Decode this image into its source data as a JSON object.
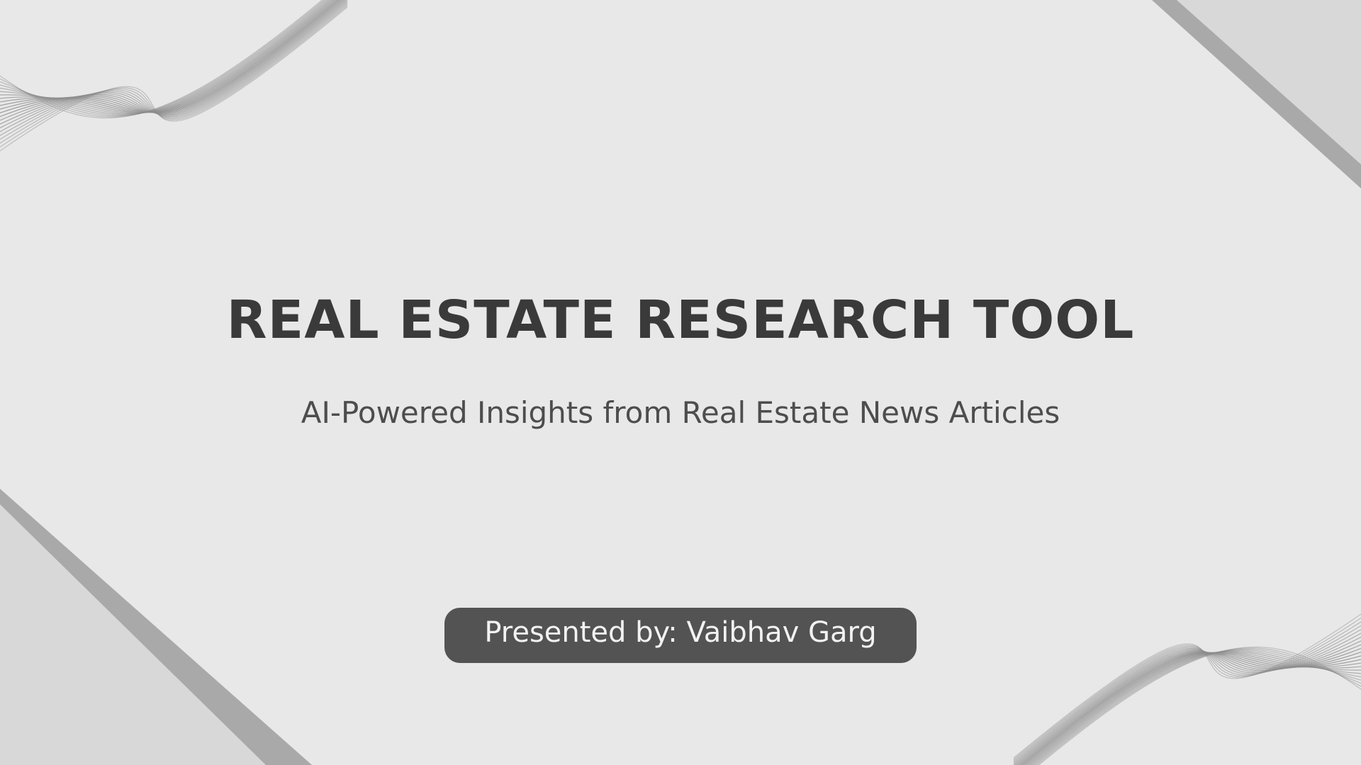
{
  "slide": {
    "title": "REAL ESTATE RESEARCH TOOL",
    "subtitle": "AI-Powered Insights from Real Estate News Articles",
    "presenter": "Presented by: Vaibhav Garg"
  },
  "colors": {
    "background": "#e8e8e8",
    "title": "#3a3a3a",
    "subtitle": "#4d4d4d",
    "pill_background": "#535353",
    "pill_text": "#f2f2f2",
    "corner_band": "#a9a9a9",
    "corner_fill": "#d8d8d8",
    "wave_lines": "#8c8c8c"
  },
  "decorations": {
    "top_left": "wave-lines",
    "bottom_right": "wave-lines",
    "top_right": "diagonal-band",
    "bottom_left": "diagonal-band"
  }
}
